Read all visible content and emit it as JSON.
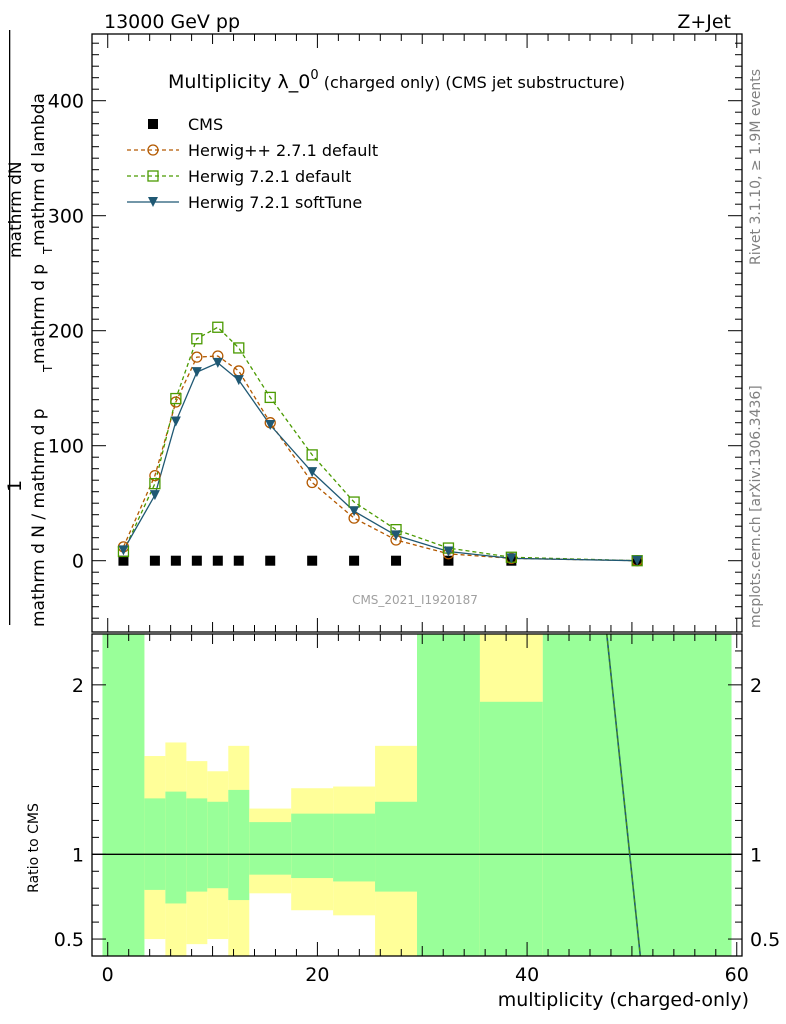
{
  "header": {
    "left": "13000 GeV pp",
    "right": "Z+Jet"
  },
  "side_labels": {
    "rivet": "Rivet 3.1.10, ≥ 1.9M events",
    "mcplots": "mcplots.cern.ch [arXiv:1306.3436]"
  },
  "watermark": "CMS_2021_I1920187",
  "chart_data": [
    {
      "type": "line",
      "title_main": "Multiplicity λ_0",
      "title_sup": "0",
      "title_rest": " (charged only) (CMS jet substructure)",
      "ylabel_top": "1",
      "ylabel_num": "mathrm dN",
      "ylabel_frac_line1": "mathrm d N / mathrm d p",
      "ylabel_frac_sub": "T",
      "ylabel_frac_line2": "mathrm d p",
      "ylabel_frac_line3": "mathrm d lambda",
      "xlim": [
        -1.5,
        60.5
      ],
      "ylim": [
        -62,
        458
      ],
      "yticks": [
        0,
        100,
        200,
        300,
        400
      ],
      "series": [
        {
          "name": "CMS",
          "color": "#000000",
          "marker": "square-filled",
          "x": [
            1.5,
            4.5,
            6.5,
            8.5,
            10.5,
            12.5,
            15.5,
            19.5,
            23.5,
            27.5,
            32.5,
            38.5,
            50.5
          ],
          "y": [
            0,
            0,
            0,
            0,
            0,
            0,
            0,
            0,
            0,
            0,
            0,
            0,
            0
          ]
        },
        {
          "name": "Herwig++ 2.7.1 default",
          "color": "#b35900",
          "marker": "circle-open",
          "dash": "4,3",
          "x": [
            1.5,
            4.5,
            6.5,
            8.5,
            10.5,
            12.5,
            15.5,
            19.5,
            23.5,
            27.5,
            32.5,
            38.5,
            50.5
          ],
          "y": [
            12,
            74,
            138,
            177,
            178,
            165,
            120,
            68,
            37,
            18,
            6,
            2,
            0
          ]
        },
        {
          "name": "Herwig 7.2.1 default",
          "color": "#4a9a00",
          "marker": "square-open",
          "dash": "4,3",
          "x": [
            1.5,
            4.5,
            6.5,
            8.5,
            10.5,
            12.5,
            15.5,
            19.5,
            23.5,
            27.5,
            32.5,
            38.5,
            50.5
          ],
          "y": [
            8,
            67,
            141,
            193,
            203,
            185,
            142,
            92,
            51,
            27,
            11,
            3,
            0
          ]
        },
        {
          "name": "Herwig 7.2.1 softTune",
          "color": "#1f5873",
          "marker": "triangle-down",
          "dash": "",
          "x": [
            1.5,
            4.5,
            6.5,
            8.5,
            10.5,
            12.5,
            15.5,
            19.5,
            23.5,
            27.5,
            32.5,
            38.5,
            50.5
          ],
          "y": [
            9,
            57,
            121,
            164,
            172,
            157,
            118,
            77,
            43,
            22,
            8,
            2,
            0
          ]
        }
      ]
    },
    {
      "type": "area",
      "ylabel": "Ratio to CMS",
      "xlabel": "multiplicity (charged-only)",
      "xlim": [
        -1.5,
        60.5
      ],
      "ylim": [
        0.4,
        2.3
      ],
      "yticks": [
        0.5,
        1,
        2
      ],
      "xticks": [
        0,
        20,
        40,
        60
      ],
      "reference_line": 1,
      "bands": [
        {
          "x0": -0.5,
          "x1": 3.5,
          "green": [
            0.0,
            9.9
          ],
          "yellow": [
            0.0,
            9.9
          ]
        },
        {
          "x0": 3.5,
          "x1": 5.5,
          "green": [
            0.79,
            1.33
          ],
          "yellow": [
            0.5,
            1.58
          ]
        },
        {
          "x0": 5.5,
          "x1": 7.5,
          "green": [
            0.71,
            1.37
          ],
          "yellow": [
            0.4,
            1.66
          ]
        },
        {
          "x0": 7.5,
          "x1": 9.5,
          "green": [
            0.78,
            1.33
          ],
          "yellow": [
            0.47,
            1.55
          ]
        },
        {
          "x0": 9.5,
          "x1": 11.5,
          "green": [
            0.8,
            1.31
          ],
          "yellow": [
            0.5,
            1.49
          ]
        },
        {
          "x0": 11.5,
          "x1": 13.5,
          "green": [
            0.73,
            1.38
          ],
          "yellow": [
            0.4,
            1.64
          ]
        },
        {
          "x0": 13.5,
          "x1": 17.5,
          "green": [
            0.88,
            1.19
          ],
          "yellow": [
            0.77,
            1.27
          ]
        },
        {
          "x0": 17.5,
          "x1": 21.5,
          "green": [
            0.86,
            1.24
          ],
          "yellow": [
            0.67,
            1.39
          ]
        },
        {
          "x0": 21.5,
          "x1": 25.5,
          "green": [
            0.84,
            1.24
          ],
          "yellow": [
            0.64,
            1.4
          ]
        },
        {
          "x0": 25.5,
          "x1": 29.5,
          "green": [
            0.78,
            1.31
          ],
          "yellow": [
            0.4,
            1.64
          ]
        },
        {
          "x0": 29.5,
          "x1": 35.5,
          "green": [
            0.0,
            9.9
          ],
          "yellow": [
            0.0,
            9.9
          ]
        },
        {
          "x0": 35.5,
          "x1": 41.5,
          "green": [
            0.0,
            1.9
          ],
          "yellow": [
            0.0,
            9.9
          ]
        },
        {
          "x0": 41.5,
          "x1": 59.5,
          "green": [
            0.0,
            9.9
          ],
          "yellow": [
            0.0,
            9.9
          ]
        }
      ],
      "ratio_line": {
        "x": [
          47.6,
          50.8
        ],
        "y": [
          2.3,
          0.4
        ],
        "color": "#1f5873"
      }
    }
  ]
}
